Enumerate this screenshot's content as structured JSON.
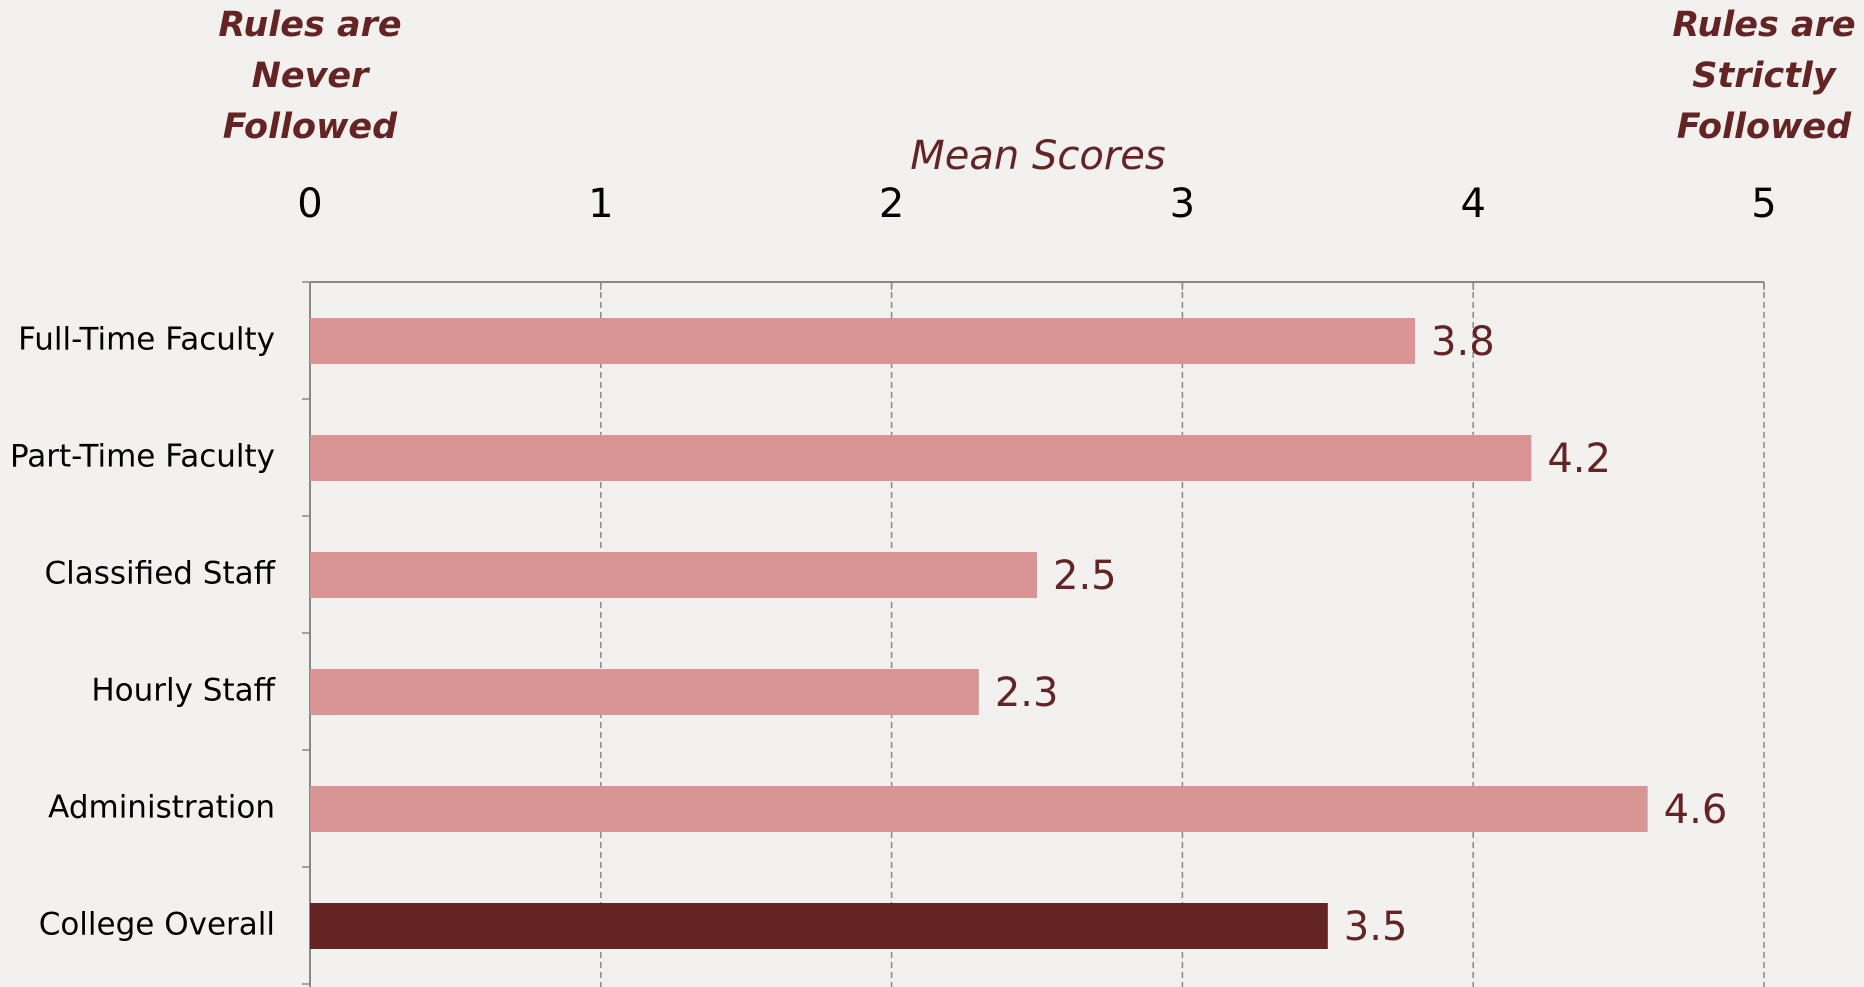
{
  "chart_data": {
    "type": "barh",
    "axis_label": "Mean Scores",
    "annotations": [
      {
        "lines": [
          "Rules are",
          "Never",
          "Followed"
        ],
        "position": "left"
      },
      {
        "lines": [
          "Rules are",
          "Strictly",
          "Followed"
        ],
        "position": "right"
      }
    ],
    "categories": [
      "Full-Time Faculty",
      "Part-Time Faculty",
      "Classified Staff",
      "Hourly Staff",
      "Administration",
      "College Overall"
    ],
    "values": [
      3.8,
      4.2,
      2.5,
      2.3,
      4.6,
      3.5
    ],
    "colors": [
      "#d99594",
      "#d99594",
      "#d99594",
      "#d99594",
      "#d99594",
      "#632423"
    ],
    "xlim": [
      0,
      5
    ],
    "xticks": [
      0,
      1,
      2,
      3,
      4,
      5
    ],
    "grid": true
  }
}
